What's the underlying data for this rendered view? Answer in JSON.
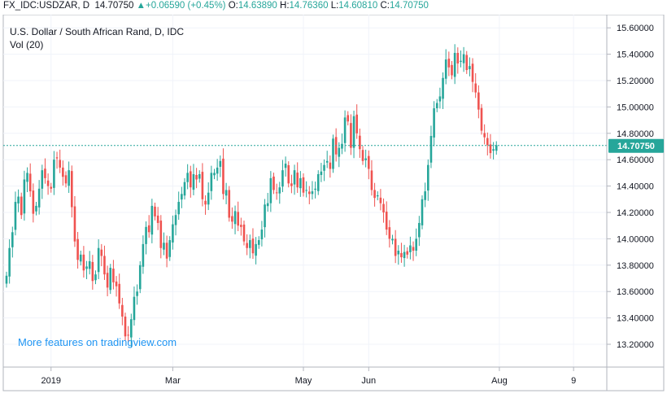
{
  "header": {
    "symbol": "FX_IDC:USDZAR, D",
    "last": "14.70750",
    "change": "+0.06590 (+0.45%)",
    "o_label": "O:",
    "o": "14.63890",
    "h_label": "H:",
    "h": "14.76360",
    "l_label": "L:",
    "l": "14.60810",
    "c_label": "C:",
    "c": "14.70750"
  },
  "legend": {
    "title": "U.S. Dollar / South African Rand, D, IDC",
    "vol": "Vol (20)"
  },
  "watermark": "More features on tradingview.com",
  "price_badge": "14.70750",
  "colors": {
    "up": "#26a69a",
    "down": "#ef5350",
    "price_line": "#26a69a",
    "grid": "#f0f3fa",
    "axis": "#131722"
  },
  "chart_data": {
    "type": "candlestick",
    "title": "U.S. Dollar / South African Rand, D, IDC",
    "y_ticks": [
      "13.20000",
      "13.40000",
      "13.60000",
      "13.80000",
      "14.00000",
      "14.20000",
      "14.40000",
      "14.60000",
      "14.80000",
      "15.00000",
      "15.20000",
      "15.40000",
      "15.60000"
    ],
    "x_ticks": [
      {
        "label": "2019",
        "index": 15
      },
      {
        "label": "Mar",
        "index": 56
      },
      {
        "label": "May",
        "index": 100
      },
      {
        "label": "Jun",
        "index": 122
      },
      {
        "label": "Aug",
        "index": 166
      },
      {
        "label": "9",
        "index": 191
      }
    ],
    "ylim": [
      13.0,
      15.68
    ],
    "last_price": 14.7075,
    "closes": [
      13.72,
      13.93,
      14.05,
      14.28,
      14.32,
      14.18,
      14.45,
      14.5,
      14.36,
      14.19,
      14.25,
      14.38,
      14.52,
      14.46,
      14.4,
      14.38,
      14.6,
      14.61,
      14.54,
      14.47,
      14.42,
      14.52,
      14.24,
      13.98,
      13.84,
      13.88,
      13.76,
      13.79,
      13.83,
      13.68,
      13.73,
      13.93,
      13.87,
      13.73,
      13.63,
      13.78,
      13.67,
      13.64,
      13.51,
      13.41,
      13.26,
      13.27,
      13.39,
      13.56,
      13.6,
      13.8,
      13.96,
      14.09,
      14.05,
      14.25,
      14.17,
      14.12,
      13.93,
      13.97,
      13.85,
      13.99,
      14.11,
      14.18,
      14.28,
      14.34,
      14.43,
      14.5,
      14.39,
      14.49,
      14.45,
      14.49,
      14.3,
      14.26,
      14.35,
      14.5,
      14.5,
      14.54,
      14.59,
      14.34,
      14.37,
      14.16,
      14.13,
      14.21,
      14.1,
      14.09,
      13.98,
      13.93,
      13.99,
      13.89,
      13.96,
      13.99,
      14.07,
      14.26,
      14.27,
      14.46,
      14.37,
      14.35,
      14.39,
      14.52,
      14.57,
      14.42,
      14.4,
      14.52,
      14.39,
      14.46,
      14.35,
      14.37,
      14.34,
      14.36,
      14.38,
      14.49,
      14.51,
      14.56,
      14.59,
      14.53,
      14.76,
      14.64,
      14.69,
      14.72,
      14.92,
      14.89,
      14.69,
      14.93,
      14.8,
      14.68,
      14.59,
      14.61,
      14.53,
      14.37,
      14.31,
      14.33,
      14.27,
      14.2,
      14.07,
      14.0,
      14.0,
      13.87,
      13.91,
      13.86,
      13.9,
      13.88,
      13.95,
      13.91,
      14.0,
      14.12,
      14.3,
      14.36,
      14.56,
      14.78,
      14.99,
      15.03,
      15.08,
      15.22,
      15.36,
      15.3,
      15.24,
      15.41,
      15.33,
      15.35,
      15.4,
      15.28,
      15.31,
      15.19,
      15.11,
      14.98,
      14.82,
      14.77,
      14.71,
      14.65,
      14.68,
      14.71
    ]
  }
}
